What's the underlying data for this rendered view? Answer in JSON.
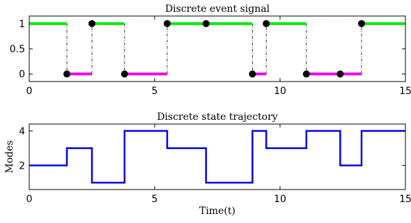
{
  "chart_data": [
    {
      "type": "line",
      "title": "Discrete event signal",
      "xlabel": "",
      "ylabel": "",
      "xlim": [
        0,
        15
      ],
      "ylim": [
        -0.15,
        1.15
      ],
      "x_ticks": [
        "0",
        "5",
        "10",
        "15"
      ],
      "y_ticks": [
        "0",
        "0.5",
        "1"
      ],
      "x_tick_values": [
        0,
        5,
        10,
        15
      ],
      "y_tick_values": [
        0,
        0.5,
        1
      ],
      "grid": false,
      "colors": {
        "high": "#00ee00",
        "low": "#ee00ee",
        "marker": "#000000",
        "connector": "#000000"
      },
      "segments": [
        {
          "x0": 0.0,
          "x1": 1.5,
          "y": 1
        },
        {
          "x0": 1.5,
          "x1": 2.5,
          "y": 0
        },
        {
          "x0": 2.5,
          "x1": 3.8,
          "y": 1
        },
        {
          "x0": 3.8,
          "x1": 5.5,
          "y": 0
        },
        {
          "x0": 5.5,
          "x1": 8.9,
          "y": 1
        },
        {
          "x0": 8.9,
          "x1": 9.45,
          "y": 0
        },
        {
          "x0": 9.45,
          "x1": 11.05,
          "y": 1
        },
        {
          "x0": 11.05,
          "x1": 13.25,
          "y": 0
        },
        {
          "x0": 13.25,
          "x1": 15.0,
          "y": 1
        }
      ],
      "events": [
        {
          "x": 1.5,
          "y": 0
        },
        {
          "x": 2.5,
          "y": 1
        },
        {
          "x": 3.8,
          "y": 0
        },
        {
          "x": 5.5,
          "y": 1
        },
        {
          "x": 7.05,
          "y": 1
        },
        {
          "x": 8.9,
          "y": 0
        },
        {
          "x": 9.45,
          "y": 1
        },
        {
          "x": 11.05,
          "y": 0
        },
        {
          "x": 12.4,
          "y": 0
        },
        {
          "x": 13.25,
          "y": 1
        }
      ]
    },
    {
      "type": "line",
      "title": "Discrete state trajectory",
      "xlabel": "Time(t)",
      "ylabel": "Modes",
      "xlim": [
        0,
        15
      ],
      "ylim": [
        0.6,
        4.4
      ],
      "x_ticks": [
        "0",
        "5",
        "10",
        "15"
      ],
      "y_ticks": [
        "2",
        "4"
      ],
      "x_tick_values": [
        0,
        5,
        10,
        15
      ],
      "y_tick_values": [
        2,
        4
      ],
      "grid": false,
      "colors": {
        "line": "#0000ee"
      },
      "steps": [
        {
          "x0": 0.0,
          "x1": 1.5,
          "y": 2
        },
        {
          "x0": 1.5,
          "x1": 2.5,
          "y": 3
        },
        {
          "x0": 2.5,
          "x1": 3.8,
          "y": 1
        },
        {
          "x0": 3.8,
          "x1": 5.5,
          "y": 4
        },
        {
          "x0": 5.5,
          "x1": 7.05,
          "y": 3
        },
        {
          "x0": 7.05,
          "x1": 8.9,
          "y": 1
        },
        {
          "x0": 8.9,
          "x1": 9.45,
          "y": 4
        },
        {
          "x0": 9.45,
          "x1": 11.05,
          "y": 3
        },
        {
          "x0": 11.05,
          "x1": 12.4,
          "y": 4
        },
        {
          "x0": 12.4,
          "x1": 13.25,
          "y": 2
        },
        {
          "x0": 13.25,
          "x1": 15.0,
          "y": 4
        }
      ]
    }
  ]
}
